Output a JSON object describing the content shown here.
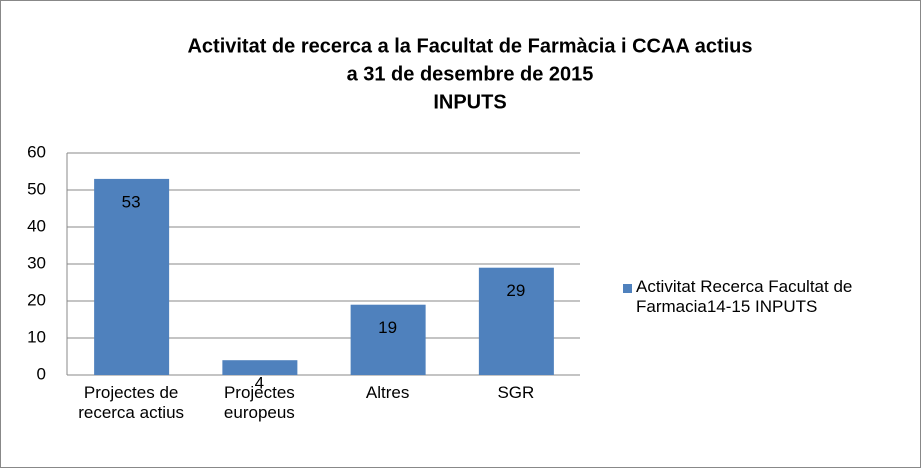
{
  "chart_data": {
    "type": "bar",
    "title": [
      "Activitat de recerca a la Facultat de Farmàcia i CCAA actius",
      "a 31 de desembre de 2015",
      "INPUTS"
    ],
    "categories": [
      "Projectes de recerca actius",
      "Projectes europeus",
      "Altres",
      "SGR"
    ],
    "series": [
      {
        "name": "Activitat Recerca Facultat de Farmacia14-15 INPUTS",
        "color": "#4f81bd",
        "values": [
          53,
          4,
          19,
          29
        ]
      }
    ],
    "ylim": [
      0,
      60
    ],
    "yticks": [
      0,
      10,
      20,
      30,
      40,
      50,
      60
    ],
    "grid": true,
    "legend": "right"
  }
}
